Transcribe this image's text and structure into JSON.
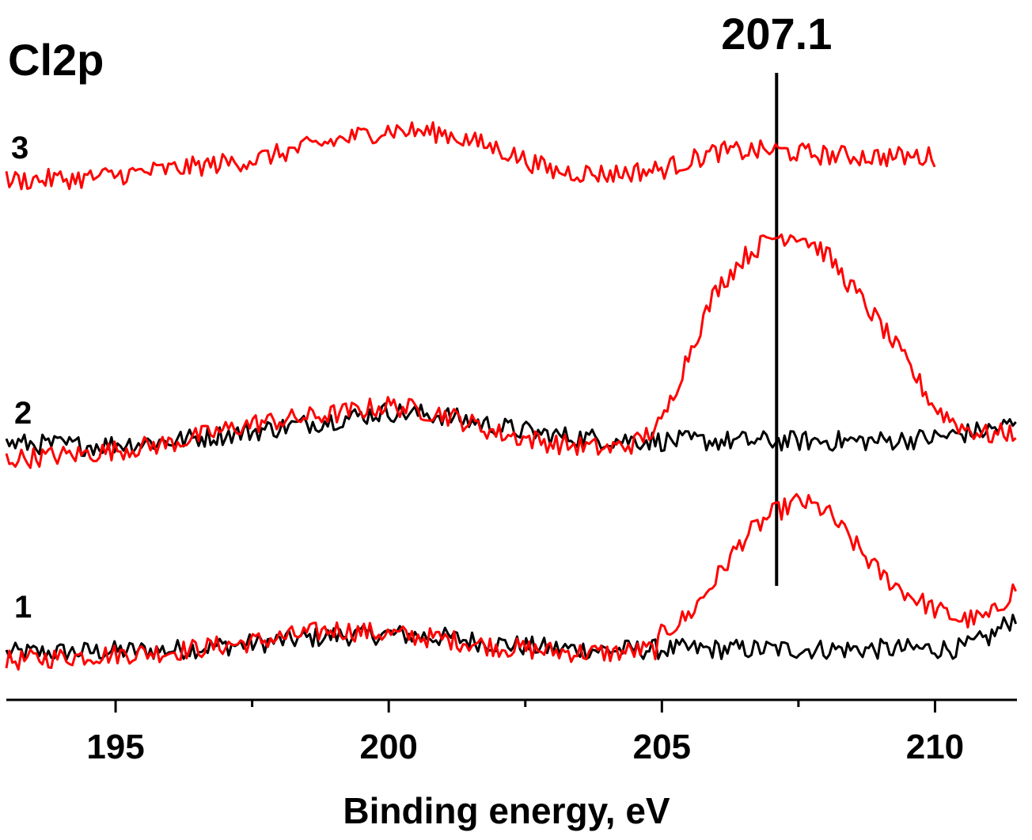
{
  "chart_data": {
    "type": "line",
    "title": "Cl2p",
    "xlabel": "Binding energy, eV",
    "ylabel": "",
    "xlim": [
      193.0,
      211.5
    ],
    "xticks": [
      195,
      200,
      205,
      210
    ],
    "xtick_labels": [
      "195",
      "200",
      "205",
      "210"
    ],
    "minor_xticks": [
      197.5,
      202.5,
      207.5
    ],
    "peak_marker": {
      "x": 207.1,
      "label": "207.1"
    },
    "groups": [
      {
        "label": "1",
        "offset": 0
      },
      {
        "label": "2",
        "offset": 260
      },
      {
        "label": "3",
        "offset": 630
      }
    ],
    "series": [
      {
        "name": "1 black",
        "group": "1",
        "color": "#000000",
        "x_end": 211.5,
        "points": [
          [
            193.0,
            0
          ],
          [
            194.5,
            2
          ],
          [
            196.0,
            4
          ],
          [
            197.5,
            12
          ],
          [
            199.0,
            22
          ],
          [
            200.0,
            24
          ],
          [
            201.0,
            20
          ],
          [
            202.0,
            12
          ],
          [
            203.0,
            6
          ],
          [
            204.0,
            4
          ],
          [
            205.0,
            5
          ],
          [
            207.0,
            5
          ],
          [
            209.0,
            5
          ],
          [
            210.5,
            6
          ],
          [
            211.0,
            20
          ],
          [
            211.5,
            48
          ]
        ]
      },
      {
        "name": "1 red",
        "group": "1",
        "color": "#ff0000",
        "x_end": 211.5,
        "points": [
          [
            193.0,
            -10
          ],
          [
            194.5,
            -3
          ],
          [
            196.0,
            2
          ],
          [
            197.5,
            14
          ],
          [
            199.0,
            30
          ],
          [
            200.0,
            24
          ],
          [
            201.0,
            18
          ],
          [
            202.0,
            8
          ],
          [
            203.0,
            2
          ],
          [
            204.0,
            0
          ],
          [
            204.9,
            5
          ],
          [
            205.0,
            25
          ],
          [
            205.5,
            48
          ],
          [
            206.0,
            95
          ],
          [
            206.5,
            145
          ],
          [
            207.0,
            175
          ],
          [
            207.5,
            192
          ],
          [
            208.0,
            180
          ],
          [
            208.5,
            140
          ],
          [
            209.0,
            100
          ],
          [
            209.5,
            75
          ],
          [
            210.0,
            55
          ],
          [
            210.5,
            42
          ],
          [
            211.0,
            45
          ],
          [
            211.5,
            85
          ]
        ]
      },
      {
        "name": "2 black",
        "group": "2",
        "color": "#000000",
        "x_end": 211.5,
        "points": [
          [
            193.0,
            15
          ],
          [
            194.5,
            12
          ],
          [
            196.0,
            18
          ],
          [
            197.5,
            30
          ],
          [
            199.0,
            45
          ],
          [
            200.0,
            55
          ],
          [
            201.0,
            50
          ],
          [
            202.0,
            36
          ],
          [
            203.0,
            25
          ],
          [
            204.0,
            20
          ],
          [
            205.0,
            18
          ],
          [
            206.0,
            18
          ],
          [
            207.0,
            18
          ],
          [
            208.0,
            18
          ],
          [
            209.0,
            18
          ],
          [
            210.0,
            22
          ],
          [
            211.0,
            32
          ],
          [
            211.5,
            40
          ]
        ]
      },
      {
        "name": "2 red",
        "group": "2",
        "color": "#ff0000",
        "x_end": 211.5,
        "points": [
          [
            193.0,
            -5
          ],
          [
            194.5,
            2
          ],
          [
            196.0,
            15
          ],
          [
            197.5,
            40
          ],
          [
            199.0,
            52
          ],
          [
            200.0,
            63
          ],
          [
            201.0,
            52
          ],
          [
            202.0,
            28
          ],
          [
            203.0,
            15
          ],
          [
            204.0,
            8
          ],
          [
            204.5,
            15
          ],
          [
            205.0,
            40
          ],
          [
            205.5,
            130
          ],
          [
            206.0,
            210
          ],
          [
            206.5,
            250
          ],
          [
            207.0,
            275
          ],
          [
            207.5,
            280
          ],
          [
            208.0,
            255
          ],
          [
            208.5,
            210
          ],
          [
            209.0,
            165
          ],
          [
            209.5,
            115
          ],
          [
            210.0,
            60
          ],
          [
            210.5,
            35
          ],
          [
            211.0,
            25
          ],
          [
            211.5,
            30
          ]
        ]
      },
      {
        "name": "3 red",
        "group": "3",
        "color": "#ff0000",
        "x_end": 210.0,
        "points": [
          [
            193.0,
            0
          ],
          [
            194.5,
            3
          ],
          [
            196.0,
            14
          ],
          [
            197.5,
            26
          ],
          [
            199.0,
            50
          ],
          [
            200.0,
            64
          ],
          [
            201.0,
            60
          ],
          [
            202.0,
            40
          ],
          [
            203.0,
            12
          ],
          [
            204.0,
            8
          ],
          [
            205.0,
            14
          ],
          [
            206.0,
            36
          ],
          [
            207.0,
            38
          ],
          [
            208.0,
            32
          ],
          [
            209.0,
            30
          ],
          [
            210.0,
            30
          ]
        ]
      }
    ]
  }
}
